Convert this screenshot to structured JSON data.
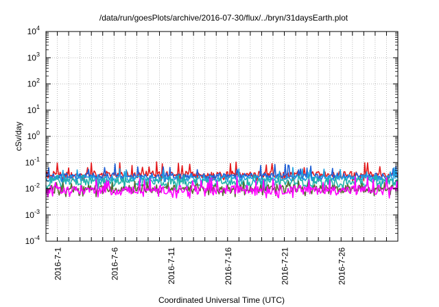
{
  "chart_data": {
    "type": "line",
    "title": "/data/run/goesPlots/archive/2016-07-30/flux/../bryn/31daysEarth.plot",
    "xlabel": "Coordinated Universal Time (UTC)",
    "ylabel": "cSv/day",
    "y_scale": "log",
    "ylim": [
      0.0001,
      10000
    ],
    "y_ticks": [
      {
        "base": "10",
        "exp": "-4"
      },
      {
        "base": "10",
        "exp": "-3"
      },
      {
        "base": "10",
        "exp": "-2"
      },
      {
        "base": "10",
        "exp": "-1"
      },
      {
        "base": "10",
        "exp": "0"
      },
      {
        "base": "10",
        "exp": "1"
      },
      {
        "base": "10",
        "exp": "2"
      },
      {
        "base": "10",
        "exp": "3"
      },
      {
        "base": "10",
        "exp": "4"
      }
    ],
    "xlim": [
      "2016-06-30",
      "2016-07-31"
    ],
    "x_tick_labels": [
      "2016-7-1",
      "2016-7-6",
      "2016-7-11",
      "2016-7-16",
      "2016-7-21",
      "2016-7-26"
    ],
    "x_tick_dates": [
      "2016-07-01",
      "2016-07-06",
      "2016-07-11",
      "2016-07-16",
      "2016-07-21",
      "2016-07-26"
    ],
    "grid": true,
    "series": [
      {
        "color": "#e41a1c",
        "typical": 0.035,
        "low": 0.02,
        "high": 0.11
      },
      {
        "color": "#1f5fd6",
        "typical": 0.03,
        "low": 0.018,
        "high": 0.09
      },
      {
        "color": "#1fa0e0",
        "typical": 0.025,
        "low": 0.015,
        "high": 0.07
      },
      {
        "color": "#20b2aa",
        "typical": 0.018,
        "low": 0.008,
        "high": 0.035
      },
      {
        "color": "#556b2f",
        "typical": 0.01,
        "low": 0.005,
        "high": 0.02
      },
      {
        "color": "#ff00ff",
        "typical": 0.009,
        "low": 0.004,
        "high": 0.03
      }
    ]
  }
}
